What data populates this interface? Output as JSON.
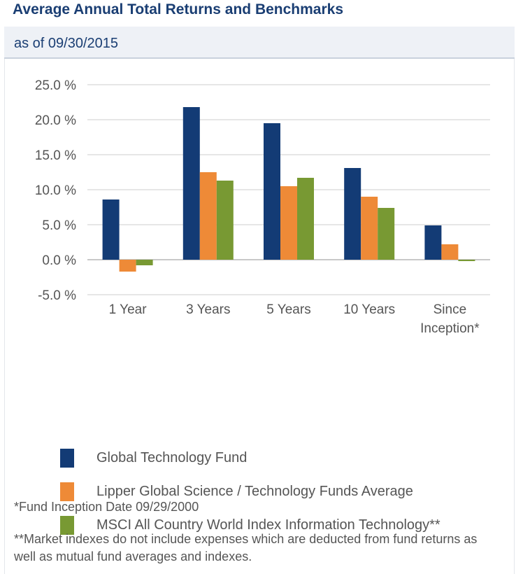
{
  "header": {
    "title": "Average Annual Total Returns and Benchmarks",
    "subtitle": "as of 09/30/2015"
  },
  "chart_data": {
    "type": "bar",
    "categories": [
      "1 Year",
      "3 Years",
      "5 Years",
      "10 Years",
      "Since Inception*"
    ],
    "category_lines": [
      [
        "1 Year"
      ],
      [
        "3 Years"
      ],
      [
        "5 Years"
      ],
      [
        "10 Years"
      ],
      [
        "Since",
        "Inception*"
      ]
    ],
    "series": [
      {
        "name": "Global Technology Fund",
        "color": "#133b75",
        "values": [
          8.6,
          21.8,
          19.5,
          13.1,
          4.9
        ]
      },
      {
        "name": "Lipper Global Science / Technology Funds Average",
        "color": "#ee8a37",
        "values": [
          -1.7,
          12.5,
          10.5,
          9.0,
          2.2
        ]
      },
      {
        "name": "MSCI All Country World Index Information Technology**",
        "color": "#789933",
        "values": [
          -0.8,
          11.3,
          11.7,
          7.4,
          -0.2
        ]
      }
    ],
    "ylim": [
      -5,
      25
    ],
    "yticks": [
      -5,
      0,
      5,
      10,
      15,
      20,
      25
    ],
    "ytick_labels": [
      "-5.0 %",
      "0.0 %",
      "5.0 %",
      "10.0 %",
      "15.0 %",
      "20.0 %",
      "25.0 %"
    ],
    "grid": true,
    "legend_position": "bottom"
  },
  "footnotes": {
    "inception": "*Fund Inception Date 09/29/2000",
    "indexes": "**Market indexes do not include expenses which are deducted from fund returns as well as mutual fund averages and indexes."
  }
}
